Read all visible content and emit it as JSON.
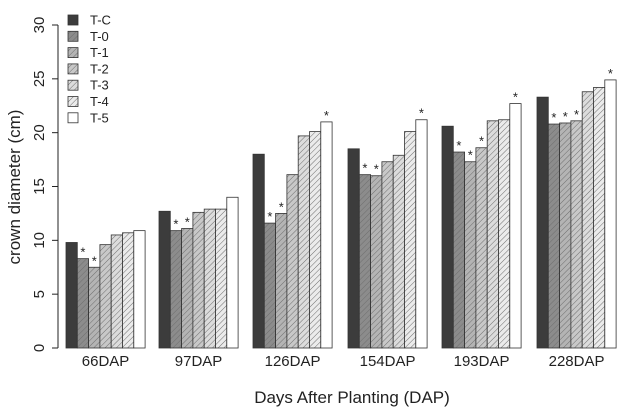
{
  "chart_data": {
    "type": "bar",
    "title": "",
    "xlabel": "Days After Planting (DAP)",
    "ylabel": "crown diameter  (cm)",
    "ylim": [
      0,
      30
    ],
    "yticks": [
      0,
      5,
      10,
      15,
      20,
      25,
      30
    ],
    "grid": false,
    "legend_position": "top-left",
    "categories": [
      "66DAP",
      "97DAP",
      "126DAP",
      "154DAP",
      "193DAP",
      "228DAP"
    ],
    "series": [
      {
        "name": "T-C",
        "color": "#3c3c3c",
        "pattern": "solid",
        "values": [
          9.8,
          12.7,
          18.0,
          18.5,
          20.6,
          23.3
        ],
        "significant": [
          false,
          false,
          false,
          false,
          false,
          false
        ]
      },
      {
        "name": "T-0",
        "color": "#8c8c8c",
        "pattern": "hatch",
        "values": [
          8.3,
          10.9,
          11.6,
          16.1,
          18.2,
          20.8
        ],
        "significant": [
          true,
          true,
          true,
          true,
          true,
          true
        ]
      },
      {
        "name": "T-1",
        "color": "#b4b4b4",
        "pattern": "hatch",
        "values": [
          7.5,
          11.1,
          12.5,
          16.0,
          17.3,
          20.9
        ],
        "significant": [
          true,
          true,
          true,
          true,
          true,
          true
        ]
      },
      {
        "name": "T-2",
        "color": "#c8c8c8",
        "pattern": "hatch",
        "values": [
          9.6,
          12.6,
          16.1,
          17.3,
          18.6,
          21.1
        ],
        "significant": [
          false,
          false,
          false,
          false,
          true,
          true
        ]
      },
      {
        "name": "T-3",
        "color": "#dcdcdc",
        "pattern": "hatch",
        "values": [
          10.5,
          12.9,
          19.7,
          17.9,
          21.1,
          23.8
        ],
        "significant": [
          false,
          false,
          false,
          false,
          false,
          false
        ]
      },
      {
        "name": "T-4",
        "color": "#ebebeb",
        "pattern": "hatch",
        "values": [
          10.7,
          12.9,
          20.1,
          20.1,
          21.2,
          24.2
        ],
        "significant": [
          false,
          false,
          false,
          false,
          false,
          false
        ]
      },
      {
        "name": "T-5",
        "color": "#ffffff",
        "pattern": "solid",
        "values": [
          10.9,
          14.0,
          21.0,
          21.2,
          22.7,
          24.9
        ],
        "significant": [
          false,
          false,
          true,
          true,
          true,
          true
        ]
      }
    ],
    "significance_marker": "*"
  }
}
